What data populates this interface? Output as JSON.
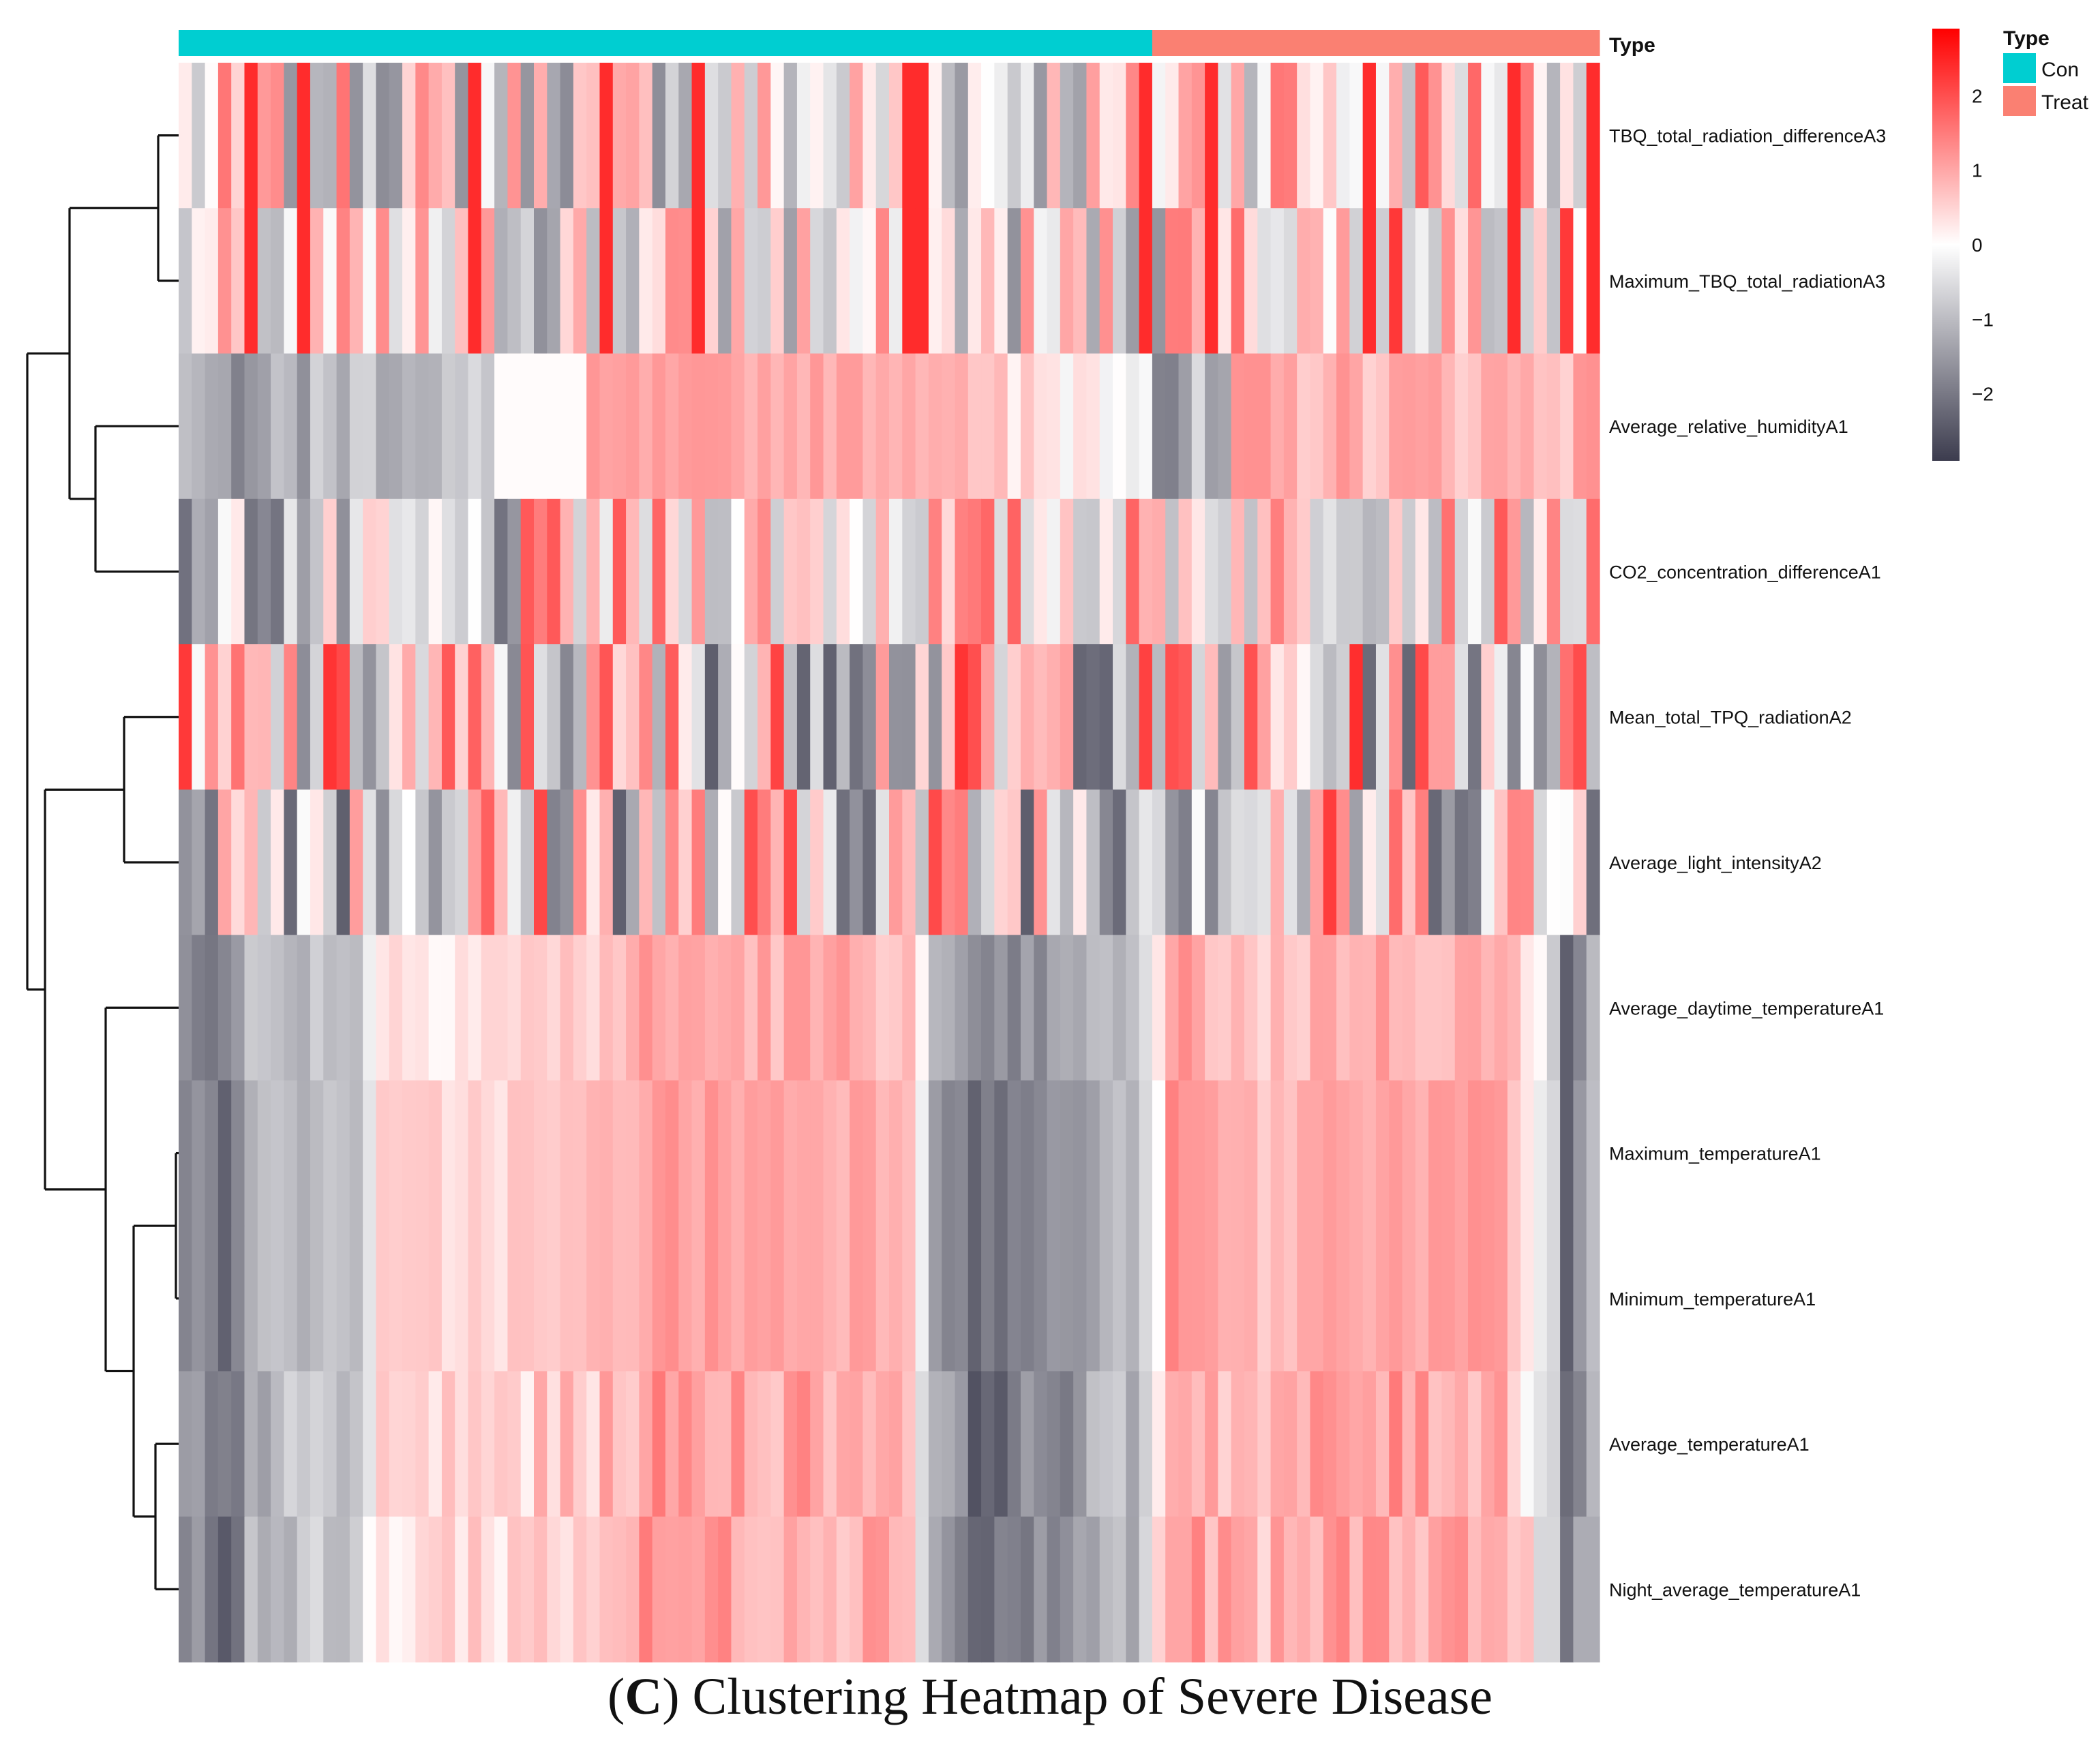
{
  "chart_data": {
    "type": "heatmap",
    "title": "",
    "annotation": {
      "label": "Type",
      "groups": [
        {
          "name": "Con",
          "color": "#00CED1",
          "columns": 74
        },
        {
          "name": "Treat",
          "color": "#FA8072",
          "columns": 34
        }
      ]
    },
    "rows": [
      "TBQ_total_radiation_differenceA3",
      "Maximum_TBQ_total_radiationA3",
      "Average_relative_humidityA1",
      "CO2_concentration_differenceA1",
      "Mean_total_TPQ_radiationA2",
      "Average_light_intensityA2",
      "Average_daytime_temperatureA1",
      "Maximum_temperatureA1",
      "Minimum_temperatureA1",
      "Average_temperatureA1",
      "Night_average_temperatureA1"
    ],
    "n_columns": 108,
    "colorbar": {
      "ticks": [
        2,
        1,
        0,
        -1,
        -2
      ],
      "tick_labels": [
        "2",
        "1",
        "0",
        "−1",
        "−2"
      ],
      "range": [
        -2.9,
        2.9
      ],
      "low_color": "#3C3C4E",
      "mid_color": "#FFFFFF",
      "high_color": "#FF0000"
    },
    "legend": {
      "title": "Type",
      "entries": [
        "Con",
        "Treat"
      ],
      "placement": "top-right"
    },
    "row_dendrogram": "((((TBQ_total_radiation_differenceA3,Maximum_TBQ_total_radiationA3),(Average_relative_humidityA1,CO2_concentration_differenceA1)),((Mean_total_TPQ_radiationA2,Average_light_intensityA2),(Average_daytime_temperatureA1,((Maximum_temperatureA1,Minimum_temperatureA1),(Average_temperatureA1,Night_average_temperatureA1))))))"
  },
  "caption": {
    "open": "(",
    "letter": "C",
    "text": ") Clustering Heatmap of Severe Disease"
  }
}
